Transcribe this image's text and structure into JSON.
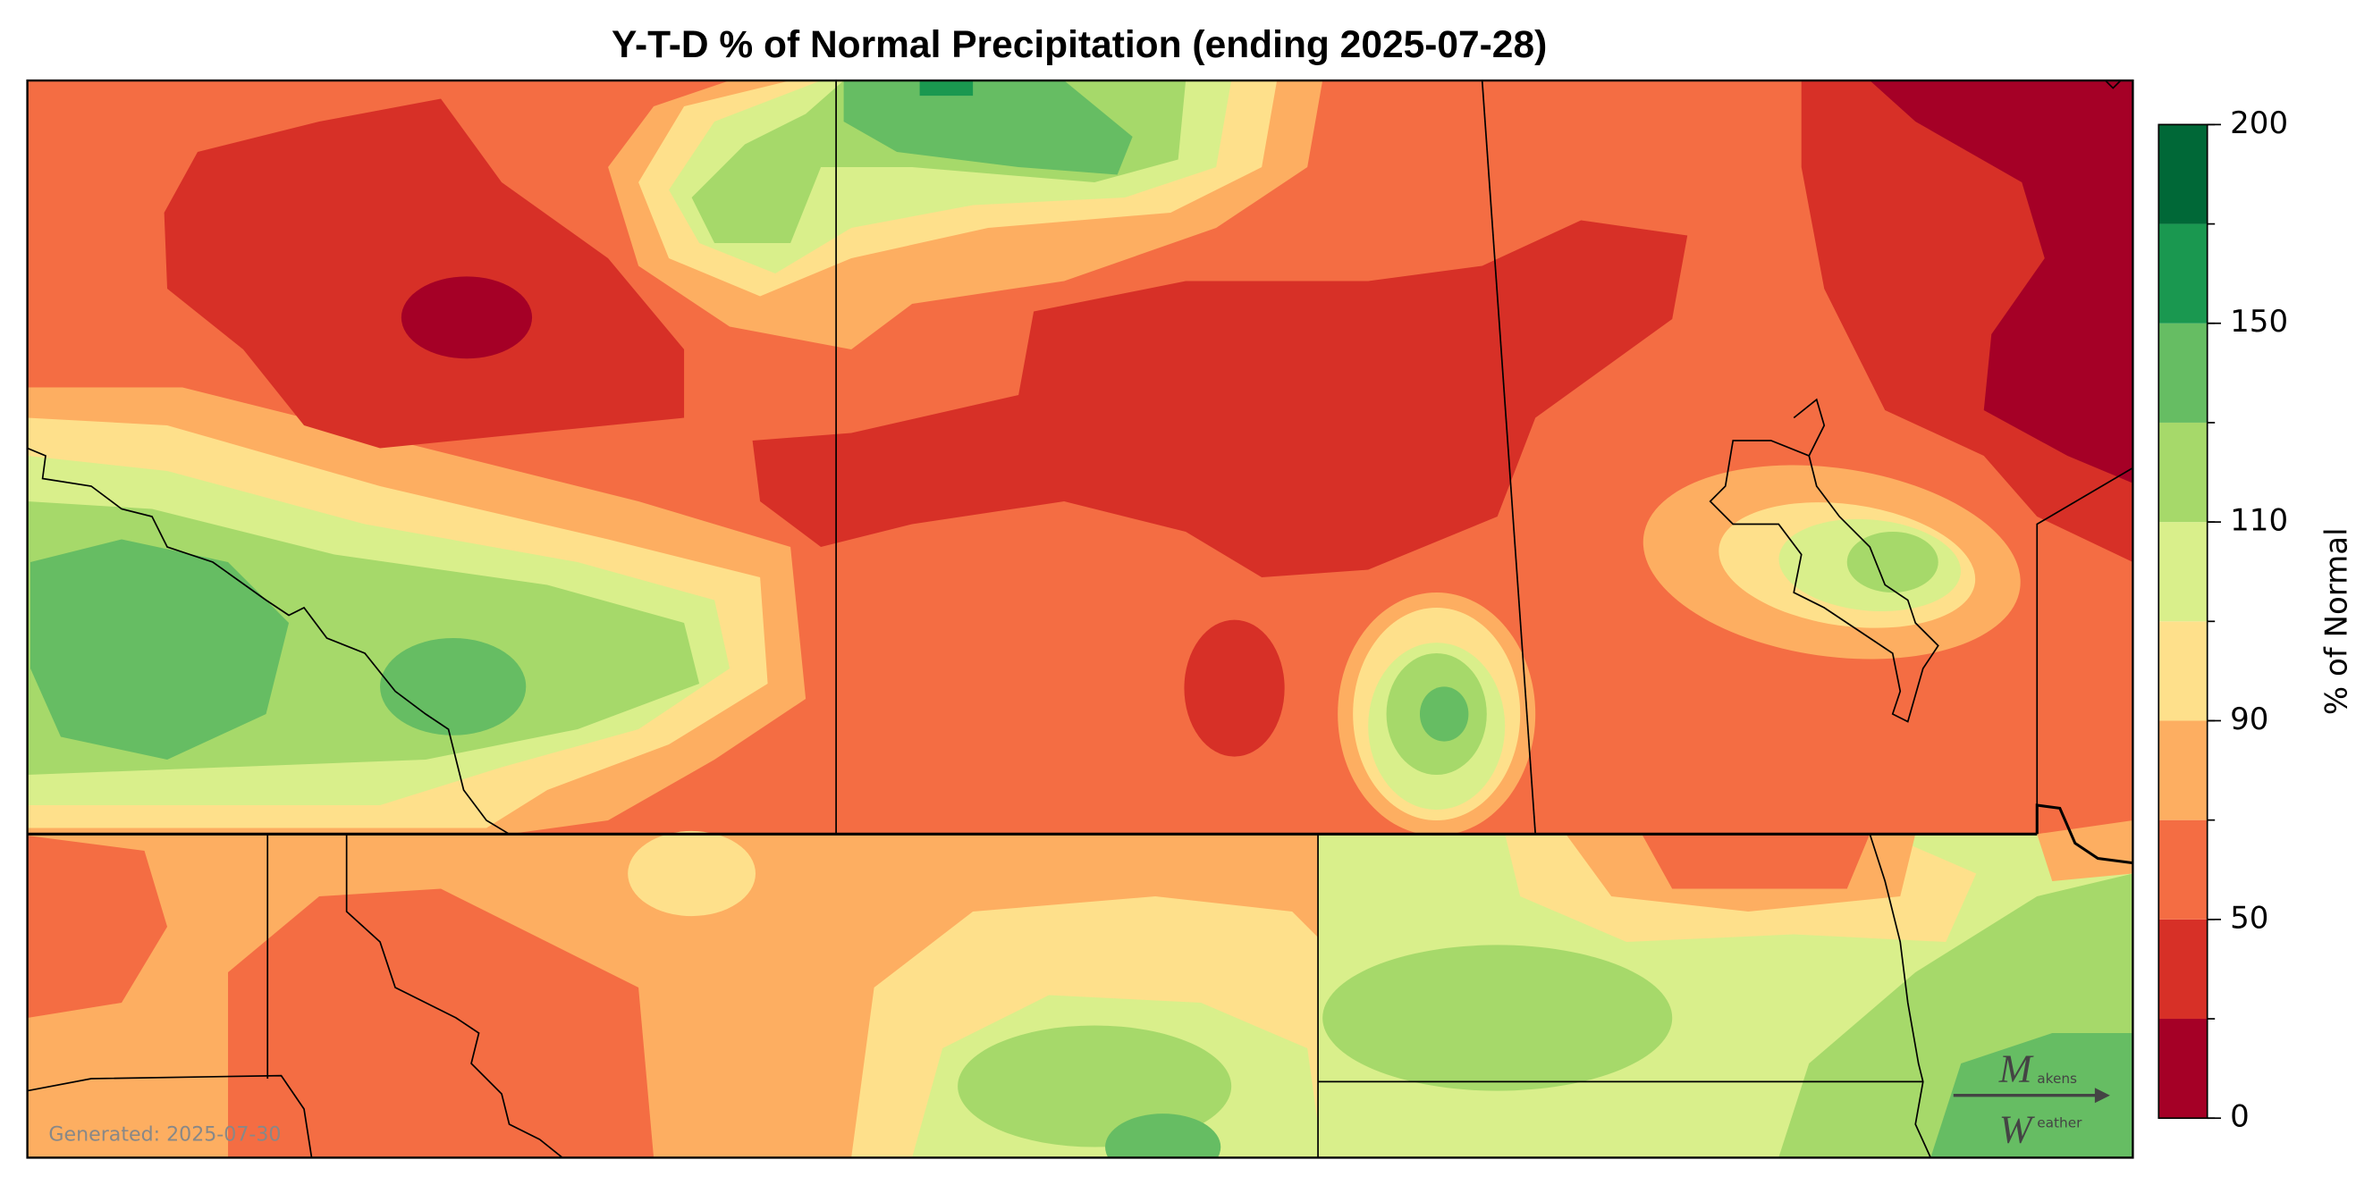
{
  "chart_data": {
    "type": "map",
    "title": "Y-T-D % of Normal Precipitation (ending 2025-07-28)",
    "colorbar": {
      "label": "% of Normal",
      "bounds": [
        0,
        25,
        50,
        75,
        90,
        100,
        110,
        125,
        150,
        175,
        200
      ],
      "colors": [
        "#a50026",
        "#d73027",
        "#f46d43",
        "#fdae61",
        "#fee08b",
        "#d9ef8b",
        "#a6d96a",
        "#66bd63",
        "#1a9850",
        "#006837"
      ],
      "ticks": [
        0,
        50,
        90,
        110,
        150,
        200
      ]
    },
    "footer": "Generated: 2025-07-30",
    "logo": {
      "initial_top": "M",
      "rest_top": "akens",
      "initial_bottom": "W",
      "rest_bottom": "eather"
    }
  }
}
